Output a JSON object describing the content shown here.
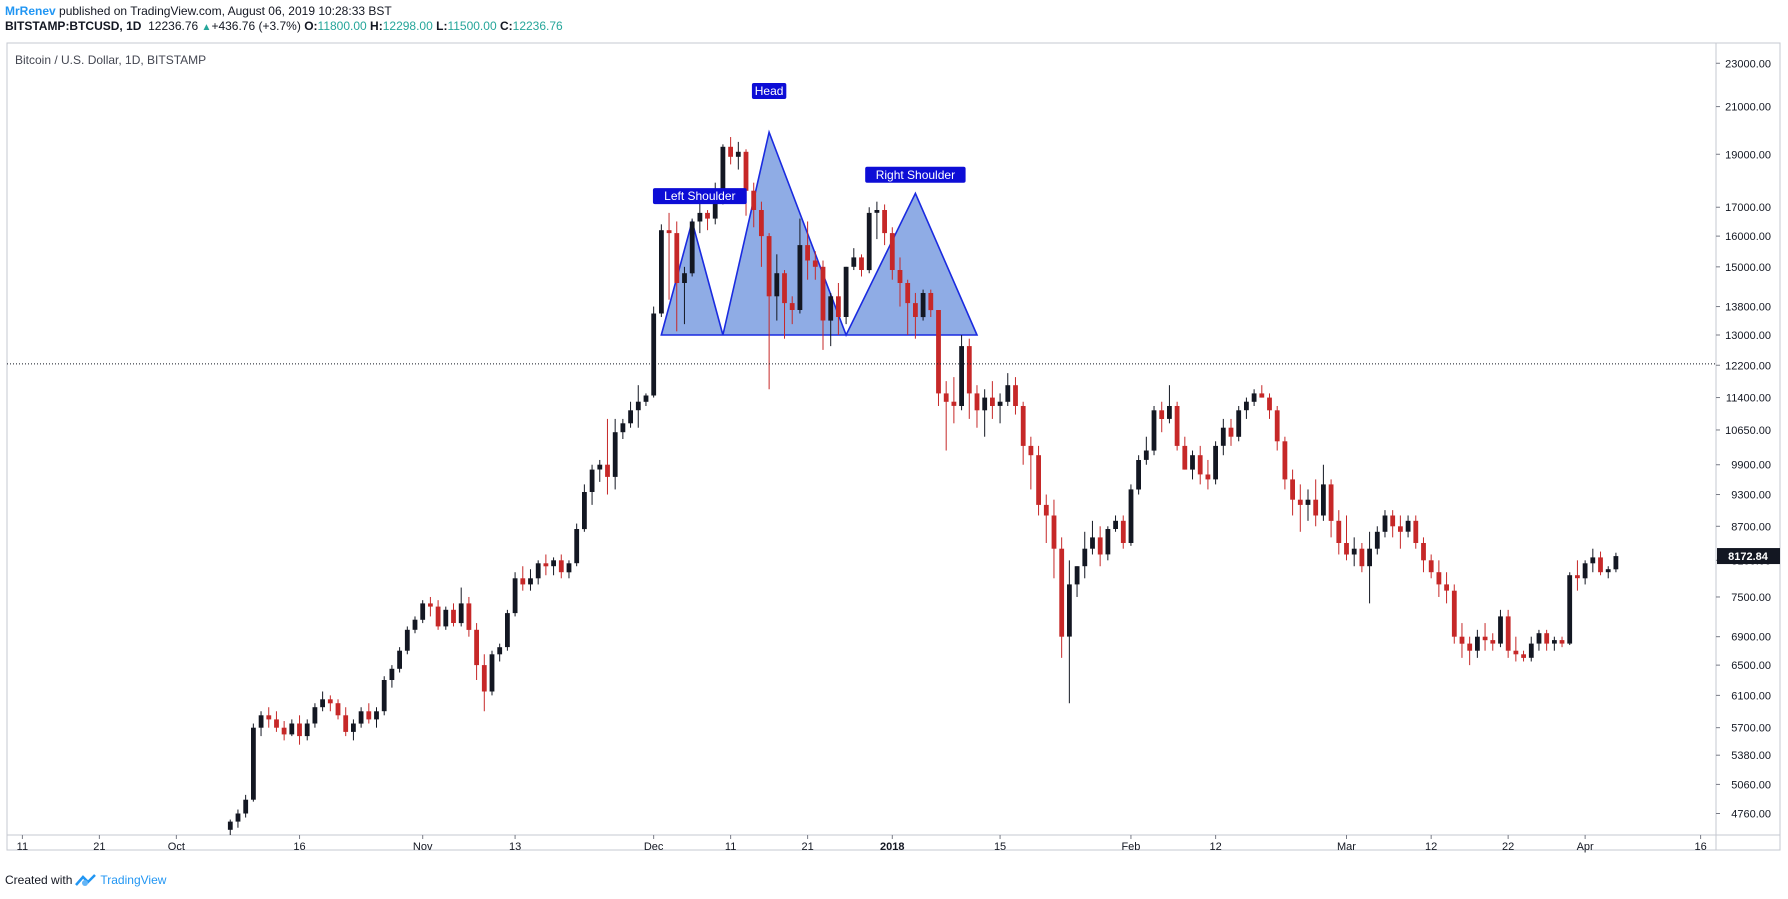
{
  "header": {
    "author": "MrRenev",
    "published_text": "published on TradingView.com, August 06, 2019 10:28:33 BST"
  },
  "ticker": {
    "symbol": "BITSTAMP:BTCUSD, 1D",
    "last": "12236.76",
    "change": "+436.76 (+3.7%)",
    "o_label": "O:",
    "o_value": "11800.00",
    "h_label": "H:",
    "h_value": "12298.00",
    "l_label": "L:",
    "l_value": "11500.00",
    "c_label": "C:",
    "c_value": "12236.76"
  },
  "footer": {
    "created_with": "Created with",
    "brand": "TradingView"
  },
  "colors": {
    "up_candle": "#131722",
    "down_candle": "#c62828",
    "pattern_fill": "#7b9ee0",
    "pattern_stroke": "#1a2be0",
    "label_bg": "#0d0dd6",
    "price_line": "#131722"
  },
  "chart_data": {
    "type": "candlestick",
    "title": "Bitcoin / U.S. Dollar, 1D, BITSTAMP",
    "y_scale": "log",
    "y_ticks": [
      23000,
      21000,
      19000,
      17000,
      16000,
      15000,
      13800,
      13000,
      12200,
      11400,
      10650,
      9900,
      9300,
      8700,
      8100,
      7500,
      6900,
      6500,
      6100,
      5700,
      5380,
      5060,
      4760
    ],
    "y_tick_labels": [
      "23000.00",
      "21000.00",
      "19000.00",
      "17000.00",
      "16000.00",
      "15000.00",
      "13800.00",
      "13000.00",
      "12200.00",
      "11400.00",
      "10650.00",
      "9900.00",
      "9300.00",
      "8700.00",
      "8100.00",
      "7500.00",
      "6900.00",
      "6500.00",
      "6100.00",
      "5700.00",
      "5380.00",
      "5060.00",
      "4760.00"
    ],
    "x_ticks": [
      {
        "label": "11",
        "day": -22
      },
      {
        "label": "21",
        "day": -12
      },
      {
        "label": "Oct",
        "day": -2
      },
      {
        "label": "16",
        "day": 14
      },
      {
        "label": "Nov",
        "day": 30
      },
      {
        "label": "13",
        "day": 42
      },
      {
        "label": "Dec",
        "day": 60
      },
      {
        "label": "11",
        "day": 70
      },
      {
        "label": "21",
        "day": 80
      },
      {
        "label": "2018",
        "day": 91
      },
      {
        "label": "15",
        "day": 105
      },
      {
        "label": "Feb",
        "day": 122
      },
      {
        "label": "12",
        "day": 133
      },
      {
        "label": "Mar",
        "day": 150
      },
      {
        "label": "12",
        "day": 161
      },
      {
        "label": "22",
        "day": 171
      },
      {
        "label": "Apr",
        "day": 181
      },
      {
        "label": "16",
        "day": 196
      }
    ],
    "x_range_days": [
      -24,
      198
    ],
    "y_range": [
      4550,
      24000
    ],
    "last_price_label": "8172.84",
    "last_price": 8172.84,
    "horizontal_line": 12236.76,
    "annotations": [
      {
        "text": "Left Shoulder",
        "day": 66,
        "price": 17400
      },
      {
        "text": "Head",
        "day": 75,
        "price": 21700
      },
      {
        "text": "Right Shoulder",
        "day": 94,
        "price": 18200
      }
    ],
    "pattern_vertices": [
      [
        61,
        13000
      ],
      [
        65,
        16500
      ],
      [
        69,
        13000
      ],
      [
        75,
        19900
      ],
      [
        85,
        13000
      ],
      [
        94,
        17500
      ],
      [
        102,
        13000
      ]
    ],
    "candles_start_day": 5,
    "candles": [
      [
        4600,
        4700,
        4550,
        4680
      ],
      [
        4680,
        4800,
        4620,
        4760
      ],
      [
        4760,
        4950,
        4720,
        4900
      ],
      [
        4900,
        5750,
        4880,
        5700
      ],
      [
        5700,
        5900,
        5600,
        5850
      ],
      [
        5850,
        5950,
        5700,
        5800
      ],
      [
        5800,
        5900,
        5650,
        5700
      ],
      [
        5700,
        5780,
        5550,
        5620
      ],
      [
        5620,
        5800,
        5600,
        5750
      ],
      [
        5750,
        5850,
        5500,
        5600
      ],
      [
        5600,
        5800,
        5550,
        5750
      ],
      [
        5750,
        6000,
        5700,
        5950
      ],
      [
        5950,
        6150,
        5900,
        6050
      ],
      [
        6050,
        6100,
        5900,
        6000
      ],
      [
        6000,
        6050,
        5800,
        5850
      ],
      [
        5850,
        5950,
        5600,
        5650
      ],
      [
        5650,
        5800,
        5550,
        5750
      ],
      [
        5750,
        5950,
        5700,
        5900
      ],
      [
        5900,
        6000,
        5750,
        5800
      ],
      [
        5800,
        5950,
        5700,
        5900
      ],
      [
        5900,
        6350,
        5850,
        6300
      ],
      [
        6300,
        6500,
        6200,
        6450
      ],
      [
        6450,
        6750,
        6400,
        6700
      ],
      [
        6700,
        7050,
        6650,
        7000
      ],
      [
        7000,
        7200,
        6950,
        7150
      ],
      [
        7150,
        7450,
        7100,
        7400
      ],
      [
        7400,
        7500,
        7200,
        7350
      ],
      [
        7350,
        7450,
        7000,
        7050
      ],
      [
        7050,
        7350,
        7000,
        7300
      ],
      [
        7300,
        7400,
        7050,
        7100
      ],
      [
        7100,
        7650,
        7050,
        7400
      ],
      [
        7400,
        7500,
        6900,
        7000
      ],
      [
        7000,
        7100,
        6300,
        6500
      ],
      [
        6500,
        6650,
        5900,
        6150
      ],
      [
        6150,
        6700,
        6100,
        6650
      ],
      [
        6650,
        6800,
        6550,
        6750
      ],
      [
        6750,
        7300,
        6700,
        7250
      ],
      [
        7250,
        7900,
        7200,
        7800
      ],
      [
        7800,
        8000,
        7600,
        7700
      ],
      [
        7700,
        7950,
        7600,
        7800
      ],
      [
        7800,
        8100,
        7700,
        8050
      ],
      [
        8050,
        8200,
        7850,
        8000
      ],
      [
        8000,
        8150,
        7850,
        8100
      ],
      [
        8100,
        8200,
        7800,
        7900
      ],
      [
        7900,
        8100,
        7800,
        8050
      ],
      [
        8050,
        8750,
        8000,
        8650
      ],
      [
        8650,
        9500,
        8600,
        9350
      ],
      [
        9350,
        9900,
        9100,
        9800
      ],
      [
        9800,
        10000,
        9550,
        9900
      ],
      [
        9900,
        10900,
        9300,
        9650
      ],
      [
        9650,
        10900,
        9400,
        10600
      ],
      [
        10600,
        10900,
        10450,
        10800
      ],
      [
        10800,
        11300,
        10700,
        11100
      ],
      [
        11100,
        11700,
        10700,
        11300
      ],
      [
        11300,
        11500,
        11200,
        11450
      ],
      [
        11450,
        13800,
        11400,
        13600
      ],
      [
        13600,
        16400,
        13500,
        16200
      ],
      [
        16200,
        16800,
        14000,
        16100
      ],
      [
        16100,
        16500,
        13100,
        14500
      ],
      [
        14500,
        15000,
        13300,
        14800
      ],
      [
        14800,
        16600,
        14700,
        16500
      ],
      [
        16500,
        17400,
        16100,
        16800
      ],
      [
        16800,
        16900,
        16200,
        16600
      ],
      [
        16600,
        17900,
        16400,
        17200
      ],
      [
        17200,
        19400,
        17100,
        19300
      ],
      [
        19300,
        19700,
        18600,
        18900
      ],
      [
        18900,
        19500,
        18400,
        19100
      ],
      [
        19100,
        19200,
        16700,
        17600
      ],
      [
        17600,
        17900,
        16300,
        16900
      ],
      [
        16900,
        17200,
        15000,
        16000
      ],
      [
        16000,
        16100,
        11600,
        14100
      ],
      [
        14100,
        15400,
        13400,
        14800
      ],
      [
        14800,
        14900,
        12900,
        13900
      ],
      [
        13900,
        14100,
        13300,
        13700
      ],
      [
        13700,
        16600,
        13600,
        15700
      ],
      [
        15700,
        16500,
        14600,
        15200
      ],
      [
        15200,
        15500,
        14600,
        15000
      ],
      [
        15000,
        15200,
        12600,
        13400
      ],
      [
        13400,
        14200,
        12700,
        14100
      ],
      [
        14100,
        14500,
        13000,
        13500
      ],
      [
        13500,
        15000,
        13300,
        15000
      ],
      [
        15000,
        15600,
        14900,
        15300
      ],
      [
        15300,
        15400,
        14700,
        14900
      ],
      [
        14900,
        17000,
        14800,
        16800
      ],
      [
        16800,
        17200,
        15900,
        16900
      ],
      [
        16900,
        17100,
        15700,
        16100
      ],
      [
        16100,
        16300,
        14600,
        14900
      ],
      [
        14900,
        15300,
        13800,
        14500
      ],
      [
        14500,
        14600,
        13000,
        13900
      ],
      [
        13900,
        14200,
        12900,
        13500
      ],
      [
        13500,
        14300,
        13400,
        14200
      ],
      [
        14200,
        14300,
        13500,
        13700
      ],
      [
        13700,
        13700,
        11200,
        11500
      ],
      [
        11500,
        11800,
        10200,
        11300
      ],
      [
        11300,
        11900,
        10800,
        11200
      ],
      [
        11200,
        13000,
        11100,
        12700
      ],
      [
        12700,
        12900,
        10900,
        11500
      ],
      [
        11500,
        11700,
        10700,
        11100
      ],
      [
        11100,
        11600,
        10500,
        11400
      ],
      [
        11400,
        11800,
        10900,
        11200
      ],
      [
        11200,
        11500,
        10800,
        11300
      ],
      [
        11300,
        12000,
        11200,
        11700
      ],
      [
        11700,
        11900,
        11000,
        11200
      ],
      [
        11200,
        11300,
        9900,
        10300
      ],
      [
        10300,
        10500,
        9400,
        10100
      ],
      [
        10100,
        10300,
        8900,
        9100
      ],
      [
        9100,
        9300,
        8400,
        8900
      ],
      [
        8900,
        9200,
        7800,
        8300
      ],
      [
        8300,
        8500,
        6600,
        6900
      ],
      [
        6900,
        8100,
        6000,
        7700
      ],
      [
        7700,
        8000,
        7500,
        8000
      ],
      [
        8000,
        8600,
        7800,
        8300
      ],
      [
        8300,
        8800,
        8200,
        8500
      ],
      [
        8500,
        8700,
        8000,
        8200
      ],
      [
        8200,
        8700,
        8100,
        8650
      ],
      [
        8650,
        8900,
        8600,
        8800
      ],
      [
        8800,
        8900,
        8300,
        8400
      ],
      [
        8400,
        9500,
        8350,
        9400
      ],
      [
        9400,
        10100,
        9300,
        10000
      ],
      [
        10000,
        10500,
        9900,
        10200
      ],
      [
        10200,
        11200,
        10100,
        11100
      ],
      [
        11100,
        11300,
        10600,
        10900
      ],
      [
        10900,
        11700,
        10800,
        11200
      ],
      [
        11200,
        11300,
        10200,
        10300
      ],
      [
        10300,
        10500,
        9800,
        9800
      ],
      [
        9800,
        10200,
        9600,
        10100
      ],
      [
        10100,
        10300,
        9500,
        9700
      ],
      [
        9700,
        10000,
        9400,
        9600
      ],
      [
        9600,
        10400,
        9500,
        10300
      ],
      [
        10300,
        10900,
        10100,
        10700
      ],
      [
        10700,
        10900,
        10300,
        10500
      ],
      [
        10500,
        11200,
        10400,
        11100
      ],
      [
        11100,
        11400,
        10900,
        11300
      ],
      [
        11300,
        11600,
        11200,
        11500
      ],
      [
        11500,
        11700,
        11400,
        11400
      ],
      [
        11400,
        11500,
        10900,
        11100
      ],
      [
        11100,
        11200,
        10200,
        10400
      ],
      [
        10400,
        10500,
        9400,
        9600
      ],
      [
        9600,
        9800,
        8900,
        9200
      ],
      [
        9200,
        9500,
        8600,
        9100
      ],
      [
        9100,
        9400,
        8800,
        9200
      ],
      [
        9200,
        9600,
        8700,
        8900
      ],
      [
        8900,
        9900,
        8800,
        9500
      ],
      [
        9500,
        9600,
        8500,
        8800
      ],
      [
        8800,
        9000,
        8200,
        8400
      ],
      [
        8400,
        8900,
        8100,
        8200
      ],
      [
        8200,
        8500,
        8000,
        8300
      ],
      [
        8300,
        8400,
        7900,
        8000
      ],
      [
        8000,
        8600,
        7400,
        8300
      ],
      [
        8300,
        8700,
        8200,
        8600
      ],
      [
        8600,
        9000,
        8500,
        8900
      ],
      [
        8900,
        9000,
        8500,
        8700
      ],
      [
        8700,
        8900,
        8300,
        8600
      ],
      [
        8600,
        8900,
        8500,
        8800
      ],
      [
        8800,
        8900,
        8300,
        8400
      ],
      [
        8400,
        8500,
        7900,
        8100
      ],
      [
        8100,
        8200,
        7800,
        7900
      ],
      [
        7900,
        8100,
        7500,
        7700
      ],
      [
        7700,
        7900,
        7400,
        7600
      ],
      [
        7600,
        7700,
        6800,
        6900
      ],
      [
        6900,
        7100,
        6600,
        6800
      ],
      [
        6800,
        6900,
        6500,
        6700
      ],
      [
        6700,
        7000,
        6600,
        6900
      ],
      [
        6900,
        7100,
        6700,
        6850
      ],
      [
        6850,
        6950,
        6700,
        6800
      ],
      [
        6800,
        7300,
        6750,
        7200
      ],
      [
        7200,
        7300,
        6600,
        6700
      ],
      [
        6700,
        6900,
        6550,
        6650
      ],
      [
        6650,
        6700,
        6550,
        6600
      ],
      [
        6600,
        6900,
        6550,
        6800
      ],
      [
        6800,
        7000,
        6700,
        6950
      ],
      [
        6950,
        7000,
        6700,
        6800
      ],
      [
        6800,
        6900,
        6700,
        6850
      ],
      [
        6850,
        6900,
        6750,
        6800
      ],
      [
        6800,
        7900,
        6780,
        7850
      ],
      [
        7850,
        8100,
        7600,
        7800
      ],
      [
        7800,
        8100,
        7700,
        8050
      ],
      [
        8050,
        8300,
        7900,
        8150
      ],
      [
        8150,
        8250,
        7850,
        7900
      ],
      [
        7900,
        8000,
        7800,
        7950
      ],
      [
        7950,
        8230,
        7900,
        8172.84
      ]
    ]
  }
}
